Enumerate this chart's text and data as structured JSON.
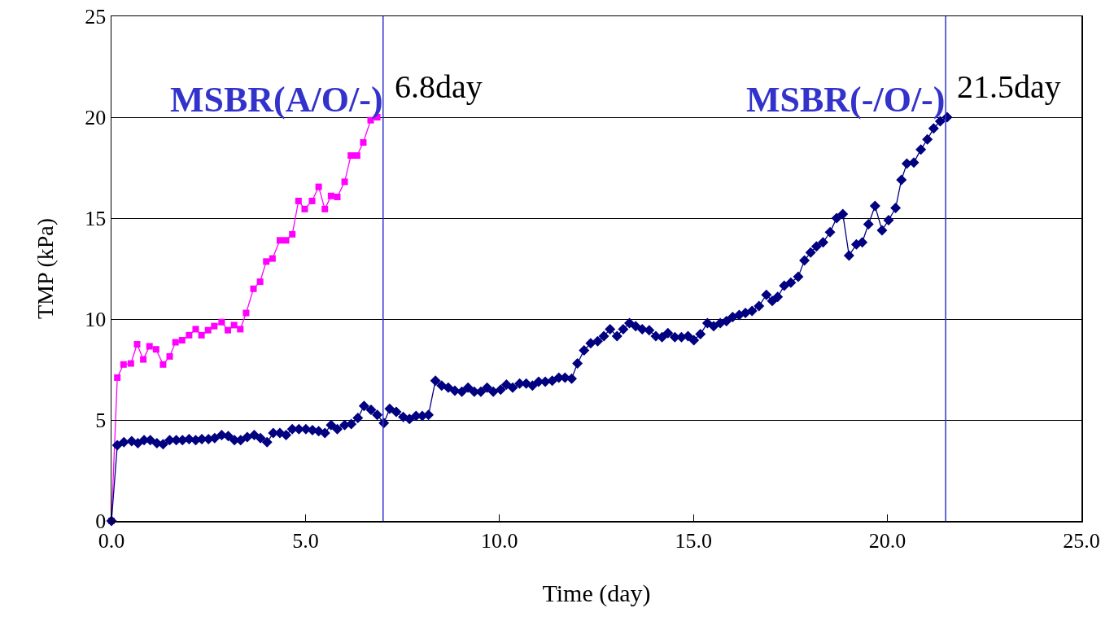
{
  "chart_data": {
    "type": "line",
    "xlabel": "Time (day)",
    "ylabel": "TMP (kPa)",
    "xlim": [
      0,
      25
    ],
    "xticks": [
      {
        "value": 0,
        "label": "0.0"
      },
      {
        "value": 5,
        "label": "5.0"
      },
      {
        "value": 10,
        "label": "10.0"
      },
      {
        "value": 15,
        "label": "15.0"
      },
      {
        "value": 20,
        "label": "20.0"
      },
      {
        "value": 25,
        "label": "25.0"
      }
    ],
    "ylim": [
      0,
      25
    ],
    "yticks": [
      0,
      5,
      10,
      15,
      20,
      25
    ],
    "grid": "y",
    "line_style": "solid",
    "series": [
      {
        "color": "#ff00ff",
        "marker": "square",
        "x": [
          0,
          0.15,
          0.31,
          0.5,
          0.66,
          0.82,
          0.98,
          1.15,
          1.33,
          1.5,
          1.65,
          1.82,
          2.0,
          2.17,
          2.32,
          2.49,
          2.65,
          2.84,
          3.0,
          3.16,
          3.32,
          3.47,
          3.66,
          3.83,
          3.99,
          4.15,
          4.34,
          4.5,
          4.66,
          4.82,
          4.98,
          5.17,
          5.34,
          5.5,
          5.66,
          5.82,
          6.01,
          6.17,
          6.33,
          6.49,
          6.68,
          6.85
        ],
        "values": [
          0,
          7.1,
          7.75,
          7.8,
          8.75,
          8.0,
          8.65,
          8.5,
          7.75,
          8.15,
          8.85,
          8.95,
          9.2,
          9.5,
          9.2,
          9.45,
          9.65,
          9.85,
          9.45,
          9.7,
          9.5,
          10.3,
          11.5,
          11.85,
          12.85,
          13.0,
          13.9,
          13.9,
          14.2,
          15.85,
          15.45,
          15.85,
          16.55,
          15.45,
          16.1,
          16.05,
          16.8,
          18.1,
          18.1,
          18.75,
          19.85,
          20.0
        ]
      },
      {
        "color": "#000080",
        "marker": "diamond",
        "x": [
          0,
          0.15,
          0.32,
          0.52,
          0.68,
          0.84,
          1.0,
          1.17,
          1.33,
          1.5,
          1.67,
          1.83,
          2.0,
          2.17,
          2.33,
          2.5,
          2.66,
          2.84,
          3.01,
          3.17,
          3.33,
          3.5,
          3.68,
          3.84,
          4.01,
          4.17,
          4.34,
          4.5,
          4.66,
          4.83,
          5.01,
          5.18,
          5.34,
          5.5,
          5.66,
          5.82,
          6.01,
          6.18,
          6.35,
          6.51,
          6.69,
          6.85,
          7.02,
          7.17,
          7.34,
          7.52,
          7.68,
          7.85,
          8.01,
          8.17,
          8.35,
          8.51,
          8.68,
          8.85,
          9.03,
          9.19,
          9.35,
          9.52,
          9.68,
          9.84,
          10.03,
          10.18,
          10.34,
          10.52,
          10.69,
          10.85,
          11.01,
          11.18,
          11.36,
          11.53,
          11.69,
          11.86,
          12.01,
          12.18,
          12.35,
          12.53,
          12.69,
          12.85,
          13.03,
          13.19,
          13.35,
          13.51,
          13.68,
          13.86,
          14.03,
          14.19,
          14.34,
          14.52,
          14.69,
          14.86,
          15.01,
          15.18,
          15.36,
          15.52,
          15.69,
          15.85,
          16.01,
          16.18,
          16.34,
          16.51,
          16.69,
          16.88,
          17.03,
          17.17,
          17.34,
          17.51,
          17.7,
          17.86,
          18.02,
          18.17,
          18.34,
          18.52,
          18.69,
          18.85,
          19.01,
          19.2,
          19.35,
          19.51,
          19.68,
          19.86,
          20.03,
          20.21,
          20.36,
          20.5,
          20.68,
          20.86,
          21.03,
          21.19,
          21.36,
          21.54
        ],
        "values": [
          0,
          3.75,
          3.9,
          3.95,
          3.85,
          4.0,
          4.0,
          3.85,
          3.8,
          4.0,
          4.0,
          4.0,
          4.05,
          4.0,
          4.05,
          4.05,
          4.1,
          4.25,
          4.2,
          4.0,
          4.0,
          4.15,
          4.25,
          4.1,
          3.9,
          4.35,
          4.35,
          4.25,
          4.55,
          4.55,
          4.55,
          4.5,
          4.45,
          4.35,
          4.75,
          4.55,
          4.75,
          4.8,
          5.1,
          5.7,
          5.5,
          5.25,
          4.85,
          5.55,
          5.4,
          5.15,
          5.05,
          5.2,
          5.2,
          5.25,
          6.95,
          6.7,
          6.6,
          6.45,
          6.4,
          6.6,
          6.4,
          6.4,
          6.6,
          6.4,
          6.5,
          6.75,
          6.6,
          6.8,
          6.8,
          6.7,
          6.9,
          6.9,
          6.95,
          7.1,
          7.1,
          7.05,
          7.8,
          8.45,
          8.8,
          8.9,
          9.15,
          9.5,
          9.15,
          9.5,
          9.8,
          9.65,
          9.5,
          9.45,
          9.15,
          9.1,
          9.3,
          9.1,
          9.1,
          9.15,
          8.95,
          9.25,
          9.8,
          9.65,
          9.8,
          9.9,
          10.1,
          10.2,
          10.3,
          10.4,
          10.65,
          11.2,
          10.9,
          11.1,
          11.65,
          11.8,
          12.1,
          12.9,
          13.3,
          13.6,
          13.8,
          14.3,
          15.0,
          15.2,
          13.15,
          13.7,
          13.8,
          14.7,
          15.6,
          14.4,
          14.9,
          15.5,
          16.9,
          17.7,
          17.75,
          18.4,
          18.9,
          19.45,
          19.8,
          20.0
        ]
      }
    ],
    "ref_lines": [
      {
        "axis": "x",
        "value": 7.0,
        "label": "6.8day",
        "color": "#3333cc"
      },
      {
        "axis": "x",
        "value": 21.5,
        "label": "21.5day",
        "color": "#3333cc"
      }
    ],
    "annotations": [
      "MSBR(A/O/-)",
      "MSBR(-/O/-)"
    ]
  }
}
